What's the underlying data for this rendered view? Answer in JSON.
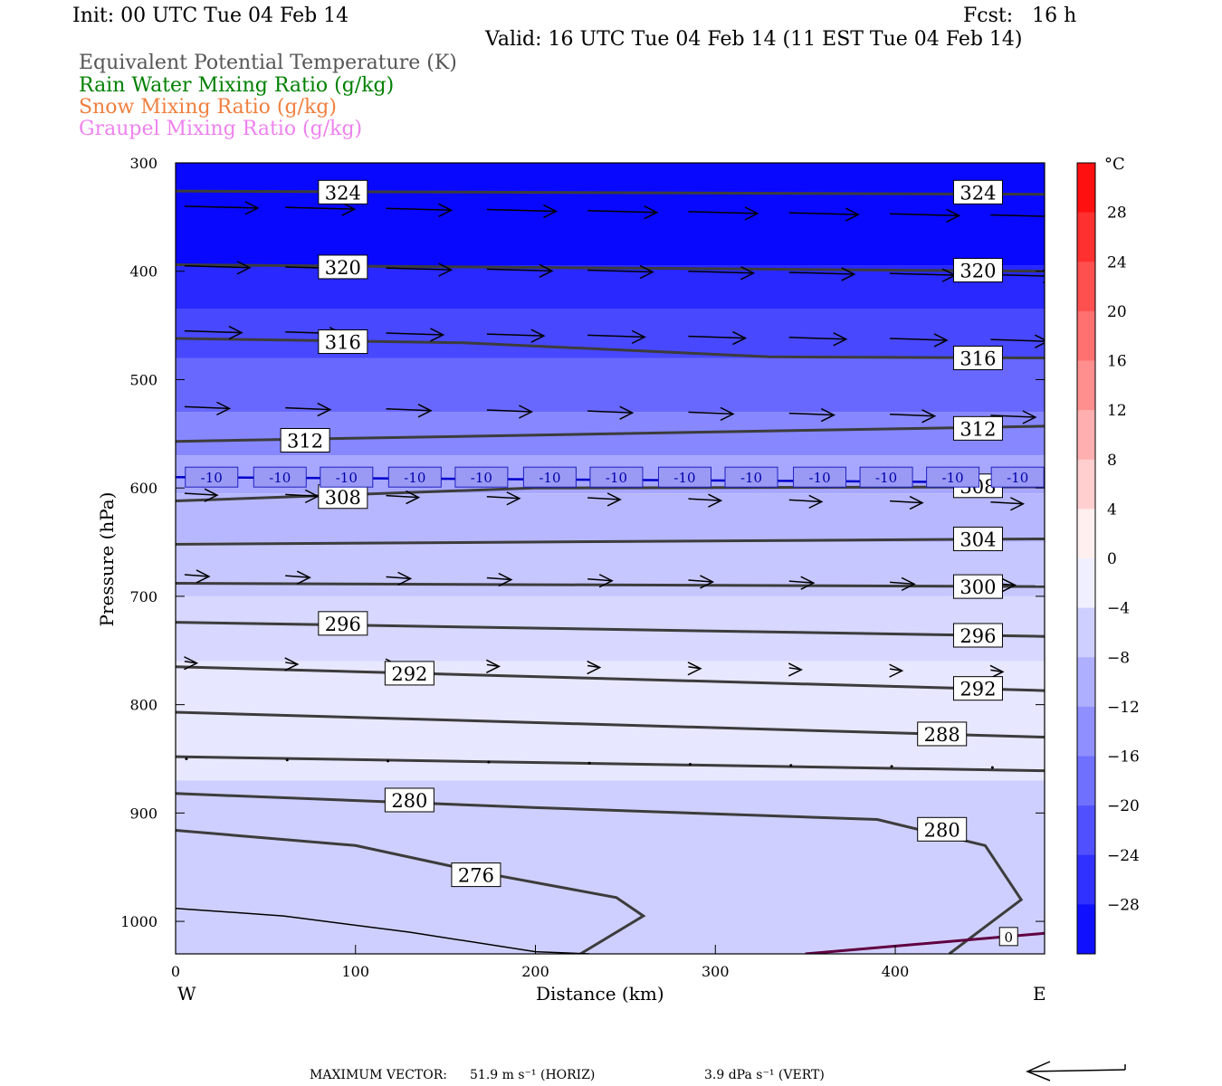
{
  "header": {
    "init": "Init: 00 UTC Tue 04 Feb 14",
    "fcst": "Fcst:   16 h",
    "valid": "Valid: 16 UTC Tue 04 Feb 14 (11 EST Tue 04 Feb 14)"
  },
  "fields": [
    {
      "label": "Equivalent Potential Temperature (K)",
      "color": "#555555"
    },
    {
      "label": "Rain Water Mixing Ratio (g/kg)",
      "color": "#008000"
    },
    {
      "label": "Snow Mixing Ratio (g/kg)",
      "color": "#f08040"
    },
    {
      "label": "Graupel Mixing Ratio (g/kg)",
      "color": "#ee82ee"
    }
  ],
  "footer": {
    "max_vector_label": "MAXIMUM VECTOR:",
    "horiz": "51.9 m s⁻¹ (HORIZ)",
    "vert": "3.9 dPa s⁻¹ (VERT)"
  },
  "chart_data": {
    "type": "contour-cross-section",
    "xlabel": "Distance (km)",
    "ylabel": "Pressure (hPa)",
    "xlim": [
      0,
      483
    ],
    "ylim": [
      1030,
      300
    ],
    "x_ticks": [
      0,
      100,
      200,
      300,
      400
    ],
    "y_ticks": [
      300,
      400,
      500,
      600,
      700,
      800,
      900,
      1000
    ],
    "x_end_labels": {
      "left": "W",
      "right": "E"
    },
    "colorbar": {
      "unit": "°C",
      "ticks": [
        28,
        24,
        20,
        16,
        12,
        8,
        4,
        0,
        -4,
        -8,
        -12,
        -16,
        -20,
        -24,
        -28
      ],
      "range": [
        -32,
        32
      ],
      "cold_color": "#0000ff",
      "warm_color": "#ff0000"
    },
    "temperature_fill_bands": [
      {
        "p_top": 300,
        "p_bottom": 395,
        "t": -31
      },
      {
        "p_top": 395,
        "p_bottom": 435,
        "t": -27
      },
      {
        "p_top": 435,
        "p_bottom": 480,
        "t": -23
      },
      {
        "p_top": 480,
        "p_bottom": 530,
        "t": -19
      },
      {
        "p_top": 530,
        "p_bottom": 570,
        "t": -15
      },
      {
        "p_top": 570,
        "p_bottom": 605,
        "t": -11
      },
      {
        "p_top": 605,
        "p_bottom": 650,
        "t": -9
      },
      {
        "p_top": 650,
        "p_bottom": 700,
        "t": -7
      },
      {
        "p_top": 700,
        "p_bottom": 760,
        "t": -5
      },
      {
        "p_top": 760,
        "p_bottom": 870,
        "t": -3
      },
      {
        "p_top": 870,
        "p_bottom": 1030,
        "t": -6
      }
    ],
    "isotherm_labels": {
      "value": "-10",
      "p": 590,
      "x": [
        20,
        58,
        95,
        133,
        170,
        208,
        245,
        283,
        320,
        358,
        395,
        432,
        468
      ]
    },
    "theta_e_contours": [
      {
        "label": "324",
        "points": [
          [
            0,
            326
          ],
          [
            483,
            329
          ]
        ],
        "label_at": [
          [
            93,
            327
          ],
          [
            446,
            327
          ]
        ]
      },
      {
        "label": "320",
        "points": [
          [
            0,
            394
          ],
          [
            483,
            400
          ]
        ],
        "label_at": [
          [
            93,
            396
          ],
          [
            446,
            399
          ]
        ]
      },
      {
        "label": "316",
        "points": [
          [
            0,
            462
          ],
          [
            160,
            466
          ],
          [
            330,
            479
          ],
          [
            483,
            480
          ]
        ],
        "label_at": [
          [
            93,
            465
          ],
          [
            446,
            480
          ]
        ]
      },
      {
        "label": "312",
        "points": [
          [
            0,
            557
          ],
          [
            483,
            543
          ]
        ],
        "label_at": [
          [
            72,
            556
          ],
          [
            446,
            545
          ]
        ]
      },
      {
        "label": "308",
        "points": [
          [
            0,
            612
          ],
          [
            200,
            600
          ],
          [
            483,
            599
          ]
        ],
        "label_at": [
          [
            93,
            608
          ],
          [
            446,
            598
          ]
        ]
      },
      {
        "label": "304",
        "points": [
          [
            0,
            652
          ],
          [
            483,
            647
          ]
        ],
        "label_at": [
          [
            446,
            647
          ]
        ]
      },
      {
        "label": "300",
        "points": [
          [
            0,
            688
          ],
          [
            483,
            691
          ]
        ],
        "label_at": [
          [
            446,
            691
          ]
        ]
      },
      {
        "label": "296",
        "points": [
          [
            0,
            724
          ],
          [
            483,
            737
          ]
        ],
        "label_at": [
          [
            93,
            725
          ],
          [
            446,
            736
          ]
        ]
      },
      {
        "label": "292",
        "points": [
          [
            0,
            765
          ],
          [
            483,
            787
          ]
        ],
        "label_at": [
          [
            130,
            771
          ],
          [
            446,
            785
          ]
        ]
      },
      {
        "label": "288",
        "points": [
          [
            0,
            807
          ],
          [
            483,
            830
          ]
        ],
        "label_at": [
          [
            426,
            827
          ]
        ]
      },
      {
        "label": "",
        "points": [
          [
            0,
            848
          ],
          [
            483,
            861
          ]
        ],
        "label_at": []
      },
      {
        "label": "280",
        "points": [
          [
            0,
            882
          ],
          [
            200,
            895
          ],
          [
            390,
            906
          ],
          [
            450,
            930
          ],
          [
            470,
            980
          ],
          [
            430,
            1030
          ]
        ],
        "label_at": [
          [
            130,
            888
          ],
          [
            426,
            915
          ]
        ]
      },
      {
        "label": "276",
        "points": [
          [
            0,
            916
          ],
          [
            100,
            930
          ],
          [
            170,
            955
          ],
          [
            245,
            978
          ],
          [
            260,
            995
          ],
          [
            225,
            1030
          ]
        ],
        "label_at": [
          [
            167,
            957
          ]
        ]
      }
    ],
    "isotherm_0_label": {
      "label": "0",
      "x": 463,
      "p": 1014
    },
    "wind_vectors": [
      {
        "p": 340,
        "u": [
          0.9,
          0.85,
          0.8,
          0.85,
          0.85,
          0.85,
          0.85,
          0.85,
          0.85
        ]
      },
      {
        "p": 395,
        "u": [
          0.8,
          0.8,
          0.8,
          0.8,
          0.8,
          0.8,
          0.8,
          0.8,
          0.8
        ]
      },
      {
        "p": 455,
        "u": [
          0.7,
          0.7,
          0.7,
          0.7,
          0.7,
          0.7,
          0.7,
          0.7,
          0.7
        ]
      },
      {
        "p": 525,
        "u": [
          0.55,
          0.55,
          0.55,
          0.55,
          0.55,
          0.55,
          0.55,
          0.55,
          0.55
        ]
      },
      {
        "p": 605,
        "u": [
          0.4,
          0.4,
          0.4,
          0.4,
          0.4,
          0.4,
          0.4,
          0.4,
          0.4
        ]
      },
      {
        "p": 680,
        "u": [
          0.3,
          0.3,
          0.3,
          0.3,
          0.3,
          0.3,
          0.3,
          0.3,
          0.3
        ]
      },
      {
        "p": 760,
        "u": [
          0.15,
          0.15,
          0.15,
          0.15,
          0.15,
          0.15,
          0.15,
          0.15,
          0.15
        ]
      },
      {
        "p": 850,
        "u": [
          0.03,
          0.03,
          0.03,
          0.03,
          0.03,
          0.03,
          0.03,
          0.03,
          0.03
        ]
      }
    ]
  }
}
